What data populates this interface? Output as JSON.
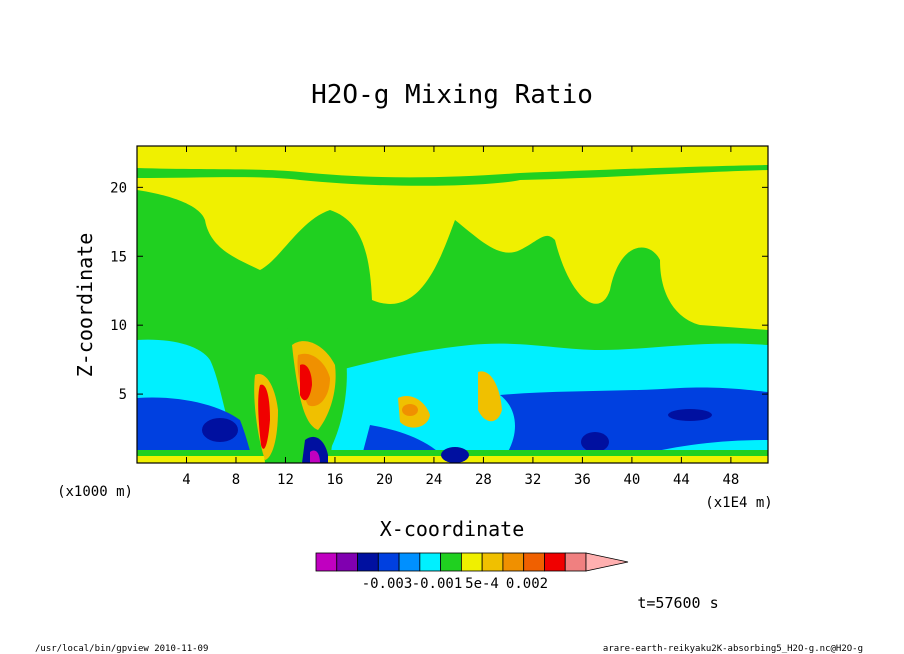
{
  "chart_data": {
    "type": "heatmap",
    "title": "H2O-g Mixing Ratio",
    "xlabel": "X-coordinate",
    "ylabel": "Z-coordinate",
    "x_unit": "(x1E4 m)",
    "y_unit": "(x1000 m)",
    "xlim": [
      0,
      51
    ],
    "ylim": [
      0,
      23
    ],
    "x_ticks": [
      4,
      8,
      12,
      16,
      20,
      24,
      28,
      32,
      36,
      40,
      44,
      48
    ],
    "y_ticks": [
      5,
      10,
      15,
      20
    ],
    "colorbar": {
      "colors": [
        "#c000c0",
        "#8000b0",
        "#0010a0",
        "#0040e0",
        "#0090ff",
        "#00f0ff",
        "#20d020",
        "#f0f000",
        "#f0c000",
        "#f09000",
        "#f06000",
        "#f00000",
        "#f08080",
        "#ffb0b0"
      ],
      "labels": [
        "-0.003",
        "-0.001",
        "5e-4",
        "0.002"
      ]
    },
    "time_label": "t=57600 s",
    "footer_left": "/usr/local/bin/gpview  2010-11-09",
    "footer_right": "arare-earth-reikyaku2K-absorbing5_H2O-g.nc@H2O-g"
  }
}
